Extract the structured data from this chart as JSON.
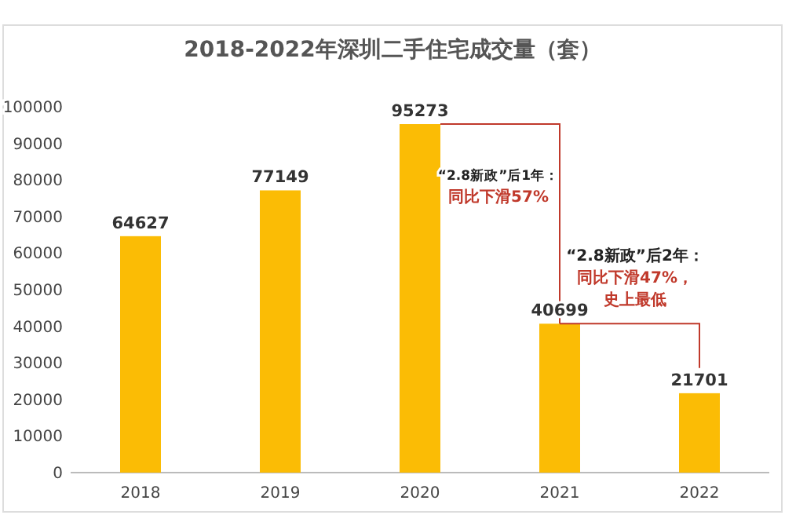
{
  "chart_data": {
    "type": "bar",
    "title": "2018-2022年深圳二手住宅成交量（套）",
    "categories": [
      "2018",
      "2019",
      "2020",
      "2021",
      "2022"
    ],
    "values": [
      64627,
      77149,
      95273,
      40699,
      21701
    ],
    "color": "#fbbc05",
    "ylim": [
      0,
      100000
    ],
    "yticks": [
      0,
      10000,
      20000,
      30000,
      40000,
      50000,
      60000,
      70000,
      80000,
      90000,
      100000
    ],
    "data_labels": true,
    "grid": false,
    "annotations": [
      "“2.8新政”后1年：",
      "同比下滑57%",
      "“2.8新政”后2年：",
      "同比下滑47%，",
      "史上最低"
    ]
  }
}
